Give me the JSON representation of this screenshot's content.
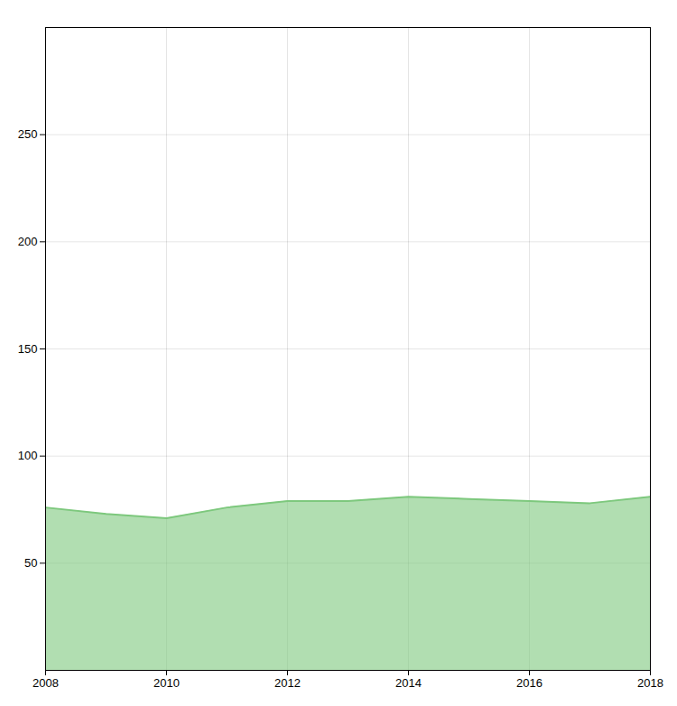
{
  "chart_data": {
    "type": "area",
    "x": [
      2008,
      2009,
      2010,
      2011,
      2012,
      2013,
      2014,
      2015,
      2016,
      2017,
      2018
    ],
    "values": [
      76,
      73,
      71,
      76,
      79,
      79,
      81,
      80,
      79,
      78,
      81
    ],
    "color": "#7dc87d",
    "xlim": [
      2008,
      2018
    ],
    "xticks": [
      2008,
      2010,
      2012,
      2014,
      2016,
      2018
    ],
    "ylim": [
      0,
      300
    ],
    "yticks": [
      50,
      100,
      150,
      200,
      250
    ],
    "grid": true
  }
}
